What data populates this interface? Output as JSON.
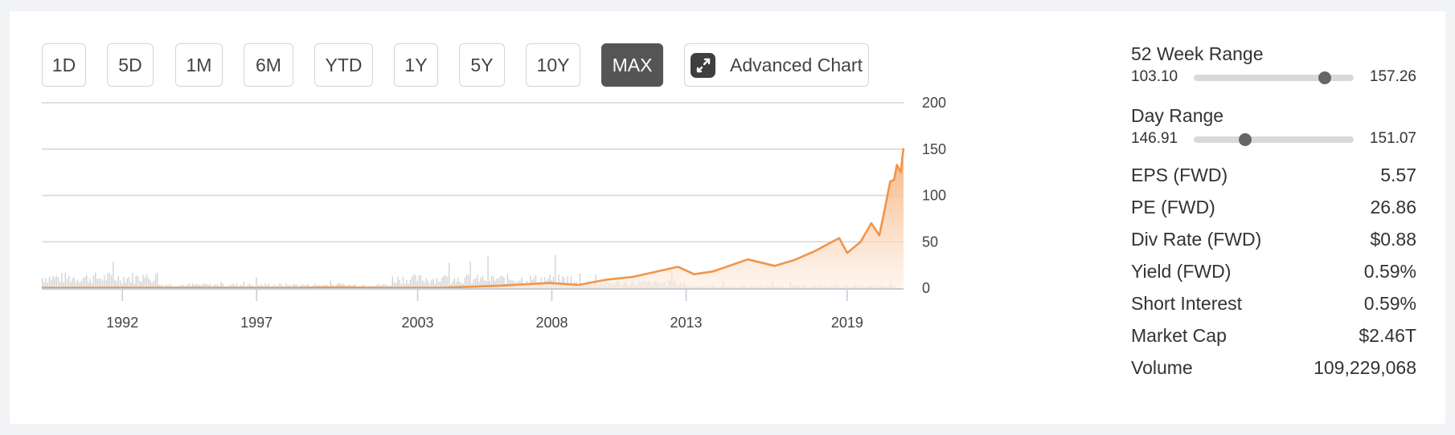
{
  "ranges": [
    {
      "label": "1D",
      "active": false
    },
    {
      "label": "5D",
      "active": false
    },
    {
      "label": "1M",
      "active": false
    },
    {
      "label": "6M",
      "active": false
    },
    {
      "label": "YTD",
      "active": false
    },
    {
      "label": "1Y",
      "active": false
    },
    {
      "label": "5Y",
      "active": false
    },
    {
      "label": "10Y",
      "active": false
    },
    {
      "label": "MAX",
      "active": true
    }
  ],
  "advanced_chart_label": "Advanced Chart",
  "colors": {
    "price_line": "#f0954a",
    "area_top": "#f5ad75",
    "volume": "#d3d3d3",
    "active_button": "#555555"
  },
  "stats": {
    "week52": {
      "title": "52 Week Range",
      "low": "103.10",
      "high": "157.26",
      "position": 0.82
    },
    "day": {
      "title": "Day Range",
      "low": "146.91",
      "high": "151.07",
      "position": 0.32
    },
    "rows": [
      {
        "label": "EPS (FWD)",
        "value": "5.57"
      },
      {
        "label": "PE (FWD)",
        "value": "26.86"
      },
      {
        "label": "Div Rate (FWD)",
        "value": "$0.88"
      },
      {
        "label": "Yield (FWD)",
        "value": "0.59%"
      },
      {
        "label": "Short Interest",
        "value": "0.59%"
      },
      {
        "label": "Market Cap",
        "value": "$2.46T"
      },
      {
        "label": "Volume",
        "value": "109,229,068"
      }
    ]
  },
  "chart_data": {
    "type": "area",
    "xlim": [
      1989.0,
      2021.1
    ],
    "ylim": [
      0,
      200
    ],
    "y_ticks": [
      0,
      50,
      100,
      150,
      200
    ],
    "x_ticks": [
      1992,
      1997,
      2003,
      2008,
      2013,
      2019
    ],
    "grid": true,
    "series": [
      {
        "values": [
          {
            "x": 1989.0,
            "y": 0.3
          },
          {
            "x": 1992.0,
            "y": 0.4
          },
          {
            "x": 1995.0,
            "y": 0.3
          },
          {
            "x": 1998.0,
            "y": 0.2
          },
          {
            "x": 2000.0,
            "y": 0.8
          },
          {
            "x": 2002.0,
            "y": 0.3
          },
          {
            "x": 2004.0,
            "y": 0.5
          },
          {
            "x": 2006.0,
            "y": 2.5
          },
          {
            "x": 2007.9,
            "y": 5.5
          },
          {
            "x": 2009.0,
            "y": 3.5
          },
          {
            "x": 2010.0,
            "y": 9
          },
          {
            "x": 2011.0,
            "y": 12
          },
          {
            "x": 2012.7,
            "y": 23
          },
          {
            "x": 2013.3,
            "y": 15
          },
          {
            "x": 2014.0,
            "y": 18
          },
          {
            "x": 2015.3,
            "y": 31
          },
          {
            "x": 2016.3,
            "y": 24
          },
          {
            "x": 2017.0,
            "y": 30
          },
          {
            "x": 2017.8,
            "y": 40
          },
          {
            "x": 2018.7,
            "y": 54
          },
          {
            "x": 2019.0,
            "y": 38
          },
          {
            "x": 2019.5,
            "y": 50
          },
          {
            "x": 2019.9,
            "y": 70
          },
          {
            "x": 2020.2,
            "y": 57
          },
          {
            "x": 2020.4,
            "y": 85
          },
          {
            "x": 2020.6,
            "y": 115
          },
          {
            "x": 2020.75,
            "y": 117
          },
          {
            "x": 2020.85,
            "y": 133
          },
          {
            "x": 2021.0,
            "y": 125
          },
          {
            "x": 2021.05,
            "y": 140
          },
          {
            "x": 2021.1,
            "y": 151
          }
        ]
      }
    ]
  }
}
